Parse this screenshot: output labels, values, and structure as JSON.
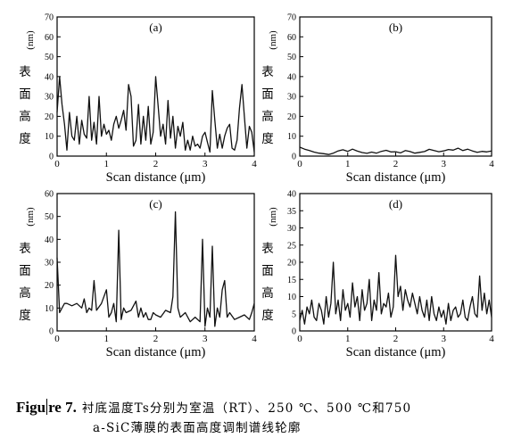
{
  "caption": {
    "label_before_cursor": "Figu",
    "label_after_cursor": "re 7.",
    "line1": "衬底温度Ts分别为室温（RT）、250 ℃、500 ℃和750",
    "line2": "a-SiC薄膜的表面高度调制谱线轮廓"
  },
  "chart_data": [
    {
      "type": "line",
      "panel_label": "(a)",
      "ylabel_unit": "(nm)",
      "ylabel_chars": [
        "表",
        "面",
        "高",
        "度"
      ],
      "xlabel": "Scan distance (μm)",
      "xlim": [
        0,
        4
      ],
      "ylim": [
        0,
        70
      ],
      "xticks": [
        0,
        1,
        2,
        3,
        4
      ],
      "yticks": [
        0,
        10,
        20,
        30,
        40,
        50,
        60,
        70
      ],
      "grid": false,
      "x": [
        0,
        0.05,
        0.1,
        0.15,
        0.2,
        0.25,
        0.3,
        0.35,
        0.4,
        0.45,
        0.5,
        0.55,
        0.6,
        0.65,
        0.7,
        0.75,
        0.8,
        0.85,
        0.9,
        0.95,
        1,
        1.05,
        1.1,
        1.15,
        1.2,
        1.25,
        1.3,
        1.35,
        1.4,
        1.45,
        1.5,
        1.55,
        1.6,
        1.65,
        1.7,
        1.75,
        1.8,
        1.85,
        1.9,
        1.95,
        2,
        2.05,
        2.1,
        2.15,
        2.2,
        2.25,
        2.3,
        2.35,
        2.4,
        2.45,
        2.5,
        2.55,
        2.6,
        2.65,
        2.7,
        2.75,
        2.8,
        2.85,
        2.9,
        2.95,
        3,
        3.05,
        3.1,
        3.15,
        3.2,
        3.25,
        3.3,
        3.35,
        3.4,
        3.45,
        3.5,
        3.55,
        3.6,
        3.65,
        3.7,
        3.75,
        3.8,
        3.85,
        3.9,
        3.95,
        4
      ],
      "values": [
        22,
        40,
        26,
        16,
        3,
        22,
        10,
        8,
        20,
        6,
        18,
        11,
        9,
        30,
        8,
        17,
        6,
        30,
        10,
        16,
        11,
        13,
        8,
        16,
        20,
        14,
        18,
        23,
        13,
        36,
        30,
        5,
        8,
        26,
        6,
        20,
        8,
        25,
        6,
        12,
        40,
        25,
        10,
        16,
        6,
        28,
        9,
        20,
        4,
        15,
        10,
        17,
        3,
        8,
        3,
        10,
        5,
        6,
        4,
        10,
        12,
        7,
        2,
        33,
        18,
        4,
        11,
        4,
        10,
        14,
        16,
        4,
        3,
        8,
        24,
        36,
        20,
        4,
        15,
        12,
        2
      ]
    },
    {
      "type": "line",
      "panel_label": "(b)",
      "ylabel_unit": "(nm)",
      "ylabel_chars": [
        "表",
        "面",
        "高",
        "度"
      ],
      "xlabel": "Scan distance (μm)",
      "xlim": [
        0,
        4
      ],
      "ylim": [
        0,
        70
      ],
      "xticks": [
        0,
        1,
        2,
        3,
        4
      ],
      "yticks": [
        0,
        10,
        20,
        30,
        40,
        50,
        60,
        70
      ],
      "grid": false,
      "x": [
        0,
        0.1,
        0.2,
        0.3,
        0.4,
        0.5,
        0.6,
        0.7,
        0.8,
        0.9,
        1,
        1.1,
        1.2,
        1.3,
        1.4,
        1.5,
        1.6,
        1.7,
        1.8,
        1.9,
        2,
        2.1,
        2.2,
        2.3,
        2.4,
        2.5,
        2.6,
        2.7,
        2.8,
        2.9,
        3,
        3.1,
        3.2,
        3.3,
        3.4,
        3.5,
        3.6,
        3.7,
        3.8,
        3.9,
        4
      ],
      "values": [
        4.5,
        3.5,
        2.8,
        2,
        1.5,
        1.2,
        0.8,
        1.5,
        2.6,
        3.2,
        2.4,
        3.5,
        2.5,
        1.8,
        1.4,
        2,
        1.5,
        2.4,
        2.9,
        2.1,
        2.2,
        1.6,
        2.8,
        2.3,
        1.5,
        1.9,
        2.3,
        3.4,
        2.8,
        2.2,
        2.6,
        3.3,
        3,
        4,
        2.8,
        3.5,
        2.6,
        1.9,
        2.4,
        2.1,
        2.6
      ]
    },
    {
      "type": "line",
      "panel_label": "(c)",
      "ylabel_unit": "(nm)",
      "ylabel_chars": [
        "表",
        "面",
        "高",
        "度"
      ],
      "xlabel": "Scan distance (μm)",
      "xlim": [
        0,
        4
      ],
      "ylim": [
        0,
        60
      ],
      "xticks": [
        0,
        1,
        2,
        3,
        4
      ],
      "yticks": [
        0,
        10,
        20,
        30,
        40,
        50,
        60
      ],
      "grid": false,
      "x": [
        0,
        0.05,
        0.1,
        0.15,
        0.2,
        0.3,
        0.4,
        0.5,
        0.55,
        0.6,
        0.65,
        0.7,
        0.75,
        0.8,
        0.9,
        1,
        1.05,
        1.1,
        1.15,
        1.2,
        1.25,
        1.3,
        1.35,
        1.4,
        1.5,
        1.6,
        1.65,
        1.7,
        1.75,
        1.8,
        1.85,
        1.9,
        1.95,
        2,
        2.1,
        2.2,
        2.3,
        2.35,
        2.4,
        2.45,
        2.5,
        2.6,
        2.7,
        2.8,
        2.9,
        2.95,
        3,
        3.05,
        3.1,
        3.15,
        3.2,
        3.25,
        3.3,
        3.35,
        3.4,
        3.45,
        3.5,
        3.6,
        3.7,
        3.8,
        3.9,
        3.95,
        4
      ],
      "values": [
        32,
        8,
        10,
        12,
        12,
        11,
        12,
        10,
        14,
        8,
        10,
        9,
        22,
        9,
        12,
        18,
        6,
        8,
        12,
        4,
        44,
        5,
        10,
        8,
        9,
        13,
        6,
        10,
        6,
        8,
        5,
        5,
        8,
        7,
        6,
        9,
        8,
        15,
        52,
        10,
        6,
        8,
        4,
        6,
        4,
        40,
        2,
        10,
        6,
        37,
        2,
        10,
        6,
        18,
        22,
        6,
        8,
        5,
        6,
        7,
        5,
        8,
        12
      ]
    },
    {
      "type": "line",
      "panel_label": "(d)",
      "ylabel_unit": "(nm)",
      "ylabel_chars": [
        "表",
        "面",
        "高",
        "度"
      ],
      "xlabel": "Scan distance (μm)",
      "xlim": [
        0,
        4
      ],
      "ylim": [
        0,
        40
      ],
      "xticks": [
        0,
        1,
        2,
        3,
        4
      ],
      "yticks": [
        0,
        5,
        10,
        15,
        20,
        25,
        30,
        35,
        40
      ],
      "grid": false,
      "x": [
        0,
        0.05,
        0.1,
        0.15,
        0.2,
        0.25,
        0.3,
        0.35,
        0.4,
        0.45,
        0.5,
        0.55,
        0.6,
        0.65,
        0.7,
        0.75,
        0.8,
        0.85,
        0.9,
        0.95,
        1,
        1.05,
        1.1,
        1.15,
        1.2,
        1.25,
        1.3,
        1.35,
        1.4,
        1.45,
        1.5,
        1.55,
        1.6,
        1.65,
        1.7,
        1.75,
        1.8,
        1.85,
        1.9,
        1.95,
        2,
        2.05,
        2.1,
        2.15,
        2.2,
        2.25,
        2.3,
        2.35,
        2.4,
        2.45,
        2.5,
        2.55,
        2.6,
        2.65,
        2.7,
        2.75,
        2.8,
        2.85,
        2.9,
        2.95,
        3,
        3.05,
        3.1,
        3.15,
        3.2,
        3.25,
        3.3,
        3.35,
        3.4,
        3.45,
        3.5,
        3.55,
        3.6,
        3.65,
        3.7,
        3.75,
        3.8,
        3.85,
        3.9,
        3.95,
        4
      ],
      "values": [
        3,
        6,
        2,
        7,
        5,
        9,
        4,
        3,
        8,
        6,
        2,
        10,
        4,
        8,
        20,
        5,
        9,
        3,
        12,
        6,
        8,
        4,
        14,
        7,
        10,
        3,
        12,
        6,
        8,
        15,
        3,
        9,
        6,
        17,
        5,
        8,
        7,
        11,
        4,
        7,
        22,
        10,
        13,
        6,
        12,
        9,
        7,
        11,
        8,
        5,
        10,
        6,
        4,
        9,
        3,
        10,
        5,
        3,
        7,
        4,
        6,
        2,
        8,
        3,
        6,
        7,
        4,
        5,
        9,
        4,
        3,
        7,
        10,
        5,
        4,
        16,
        6,
        11,
        5,
        9,
        4
      ]
    }
  ]
}
